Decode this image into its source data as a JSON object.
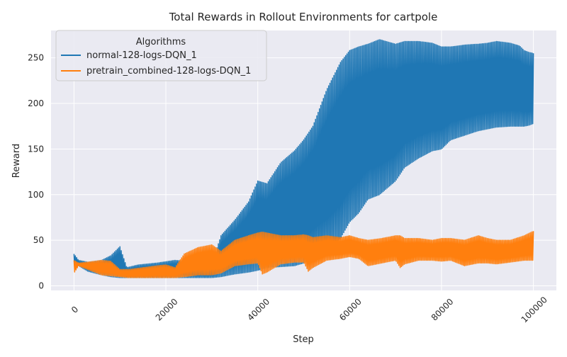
{
  "chart_data": {
    "type": "line",
    "title": "Total Rewards in Rollout Environments for cartpole",
    "xlabel": "Step",
    "ylabel": "Reward",
    "xlim": [
      -5000,
      105000
    ],
    "ylim": [
      -5,
      280
    ],
    "xticks": [
      0,
      20000,
      40000,
      60000,
      80000,
      100000
    ],
    "xtick_labels": [
      "0",
      "20000",
      "40000",
      "60000",
      "80000",
      "100000"
    ],
    "yticks": [
      0,
      50,
      100,
      150,
      200,
      250
    ],
    "ytick_labels": [
      "0",
      "50",
      "100",
      "150",
      "200",
      "250"
    ],
    "grid": true,
    "background": "#eaeaf2",
    "legend": {
      "title": "Algorithms",
      "position": "upper-left"
    },
    "series": [
      {
        "name": "normal-128-logs-DQN_1",
        "color": "#1f77b4",
        "oscillating": true,
        "x": [
          0,
          1000,
          3000,
          6000,
          8000,
          10000,
          11500,
          14000,
          18000,
          22000,
          26000,
          30000,
          32000,
          35000,
          38000,
          40000,
          42000,
          45000,
          48000,
          50000,
          52000,
          55000,
          58000,
          60000,
          62000,
          64000,
          66500,
          70000,
          72000,
          75000,
          78000,
          80000,
          82000,
          85000,
          88000,
          90000,
          92000,
          95000,
          97000,
          98000,
          99000,
          100000
        ],
        "upper": [
          35,
          28,
          26,
          28,
          33,
          43,
          20,
          23,
          25,
          28,
          26,
          24,
          55,
          72,
          92,
          115,
          112,
          135,
          148,
          160,
          175,
          215,
          245,
          258,
          262,
          265,
          270,
          265,
          268,
          268,
          266,
          262,
          262,
          264,
          265,
          266,
          268,
          266,
          263,
          258,
          256,
          255
        ],
        "lower": [
          20,
          22,
          16,
          12,
          10,
          9,
          9,
          9,
          9,
          9,
          9,
          9,
          10,
          13,
          15,
          17,
          20,
          21,
          22,
          25,
          36,
          40,
          52,
          70,
          80,
          95,
          100,
          115,
          130,
          140,
          148,
          150,
          160,
          165,
          170,
          172,
          174,
          175,
          175,
          175,
          176,
          178
        ]
      },
      {
        "name": "pretrain_combined-128-logs-DQN_1",
        "color": "#ff7f0e",
        "oscillating": true,
        "x": [
          0,
          1000,
          3000,
          6000,
          8000,
          10000,
          12000,
          15000,
          18000,
          20000,
          22000,
          24000,
          27000,
          30000,
          32000,
          35000,
          38000,
          40000,
          41000,
          42000,
          45000,
          48000,
          50000,
          51000,
          52000,
          55000,
          58000,
          60000,
          62000,
          64000,
          67000,
          70000,
          71000,
          72000,
          75000,
          78000,
          80000,
          82000,
          85000,
          88000,
          90000,
          92000,
          95000,
          98000,
          100000
        ],
        "upper": [
          28,
          25,
          26,
          28,
          27,
          18,
          18,
          20,
          22,
          23,
          20,
          35,
          42,
          45,
          38,
          50,
          55,
          58,
          59,
          58,
          55,
          55,
          56,
          55,
          53,
          55,
          53,
          55,
          52,
          50,
          52,
          55,
          55,
          52,
          52,
          50,
          52,
          52,
          50,
          55,
          52,
          50,
          50,
          55,
          60
        ],
        "lower": [
          14,
          22,
          18,
          12,
          11,
          10,
          9,
          9,
          9,
          9,
          9,
          10,
          12,
          12,
          14,
          22,
          24,
          25,
          13,
          15,
          24,
          26,
          26,
          16,
          20,
          28,
          30,
          32,
          30,
          22,
          25,
          28,
          20,
          24,
          28,
          28,
          27,
          28,
          22,
          25,
          25,
          24,
          26,
          28,
          28
        ]
      }
    ]
  }
}
